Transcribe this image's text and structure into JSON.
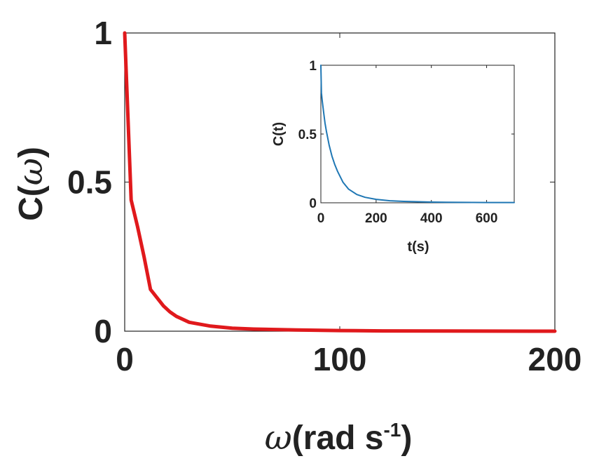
{
  "chart_data": [
    {
      "id": "main",
      "type": "line",
      "xlabel": {
        "symbol": "ω",
        "text": "(rad s",
        "sup": "-1",
        "close": ")"
      },
      "ylabel": {
        "prefix": "C(",
        "symbol": "ω",
        "close": ")"
      },
      "xlim": [
        0,
        200
      ],
      "ylim": [
        0,
        1
      ],
      "xticks": [
        0,
        100,
        200
      ],
      "yticks": [
        0,
        0.5,
        1
      ],
      "xtick_labels": [
        "0",
        "100",
        "200"
      ],
      "ytick_labels": [
        "0",
        "0.5",
        "1"
      ],
      "grid": false,
      "series": [
        {
          "color": "#e0191c",
          "x": [
            0,
            3,
            6,
            9,
            12,
            18,
            21,
            24,
            30,
            40,
            50,
            60,
            80,
            100,
            120,
            150,
            200
          ],
          "y": [
            1.0,
            0.44,
            0.35,
            0.25,
            0.14,
            0.085,
            0.065,
            0.05,
            0.03,
            0.017,
            0.01,
            0.007,
            0.004,
            0.002,
            0.001,
            0.0005,
            0.0
          ]
        }
      ]
    },
    {
      "id": "inset",
      "type": "line",
      "xlabel": "t(s)",
      "ylabel": "C(t)",
      "xlim": [
        0,
        700
      ],
      "ylim": [
        0,
        1
      ],
      "xticks": [
        0,
        200,
        400,
        600
      ],
      "yticks": [
        0,
        0.5,
        1
      ],
      "xtick_labels": [
        "0",
        "200",
        "400",
        "600"
      ],
      "ytick_labels": [
        "0",
        "0.5",
        "1"
      ],
      "grid": false,
      "series": [
        {
          "color": "#1f77b4",
          "x": [
            0,
            2,
            5,
            10,
            15,
            20,
            30,
            40,
            50,
            60,
            80,
            100,
            130,
            160,
            200,
            250,
            300,
            400,
            500,
            600,
            700
          ],
          "y": [
            1.0,
            0.8,
            0.74,
            0.66,
            0.58,
            0.52,
            0.42,
            0.34,
            0.28,
            0.23,
            0.15,
            0.1,
            0.06,
            0.04,
            0.025,
            0.015,
            0.01,
            0.005,
            0.003,
            0.002,
            0.002
          ]
        }
      ]
    }
  ]
}
